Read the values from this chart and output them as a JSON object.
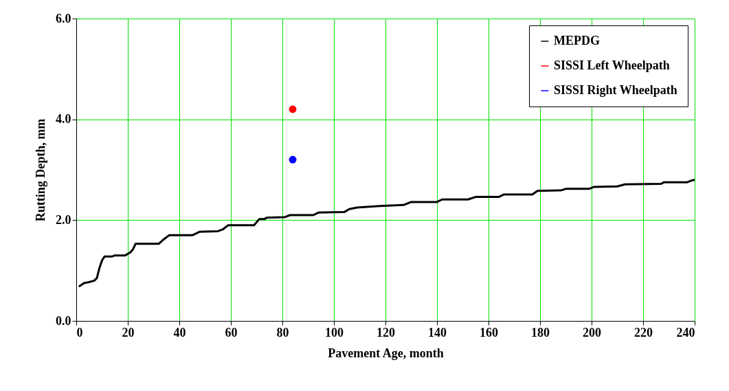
{
  "chart_data": {
    "type": "line",
    "xlabel": "Pavement Age, month",
    "ylabel": "Rutting Depth, mm",
    "xlim": [
      0,
      240
    ],
    "xticks": [
      0,
      20,
      40,
      60,
      80,
      100,
      120,
      140,
      160,
      180,
      200,
      220,
      240
    ],
    "ylim": [
      0,
      6
    ],
    "yticks": [
      {
        "value": 0,
        "label": "0.0"
      },
      {
        "value": 2,
        "label": "2.0"
      },
      {
        "value": 4,
        "label": "4.0"
      },
      {
        "value": 6,
        "label": "6.0"
      }
    ],
    "grid": true,
    "legend": "top right",
    "series": [
      {
        "name": "MEPDG",
        "color": "#000000",
        "marker": "none",
        "line_style": "solid",
        "x": [
          1,
          3,
          5,
          7,
          8,
          9,
          10,
          11,
          14,
          15,
          19,
          21,
          22,
          23,
          32,
          34,
          36,
          45,
          48,
          55,
          57,
          59,
          69,
          71,
          73,
          74,
          81,
          83,
          92,
          94,
          104,
          106,
          109,
          118,
          127,
          130,
          140,
          142,
          152,
          155,
          164,
          166,
          177,
          179,
          188,
          190,
          199,
          201,
          210,
          213,
          227,
          228,
          237,
          239,
          240
        ],
        "values": [
          0.68,
          0.75,
          0.77,
          0.8,
          0.85,
          1.05,
          1.2,
          1.28,
          1.28,
          1.3,
          1.3,
          1.36,
          1.42,
          1.53,
          1.53,
          1.62,
          1.7,
          1.7,
          1.77,
          1.78,
          1.82,
          1.9,
          1.9,
          2.02,
          2.02,
          2.05,
          2.06,
          2.1,
          2.1,
          2.15,
          2.16,
          2.22,
          2.25,
          2.28,
          2.3,
          2.36,
          2.36,
          2.41,
          2.41,
          2.46,
          2.46,
          2.51,
          2.51,
          2.58,
          2.59,
          2.62,
          2.62,
          2.66,
          2.67,
          2.71,
          2.72,
          2.75,
          2.75,
          2.79,
          2.8
        ]
      },
      {
        "name": "SISSI Left Wheelpath",
        "type": "scatter",
        "color": "#ff0000",
        "marker": "circle",
        "x": [
          84
        ],
        "values": [
          4.2
        ]
      },
      {
        "name": "SISSI Right Wheelpath",
        "type": "scatter",
        "color": "#0000ff",
        "marker": "circle",
        "x": [
          84
        ],
        "values": [
          3.2
        ]
      }
    ]
  }
}
